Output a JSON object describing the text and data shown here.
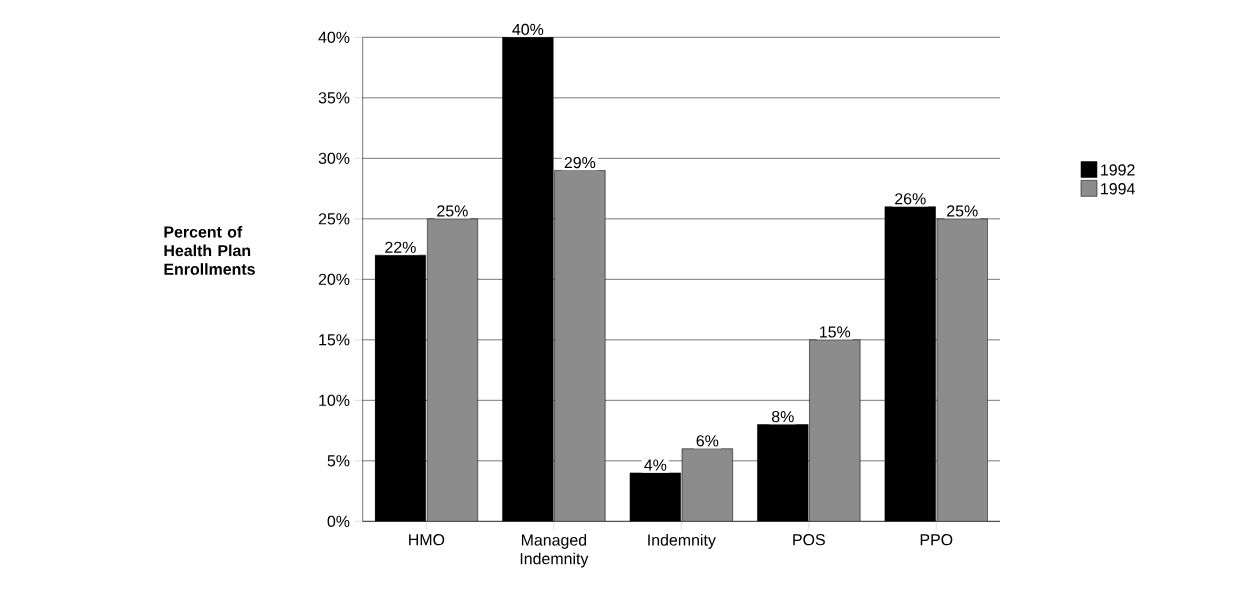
{
  "chart_data": {
    "type": "bar",
    "ylabel": "Percent of Health Plan Enrollments",
    "categories": [
      "HMO",
      "Managed Indemnity",
      "Indemnity",
      "POS",
      "PPO"
    ],
    "series": [
      {
        "name": "1992",
        "color": "#000000",
        "values": [
          22,
          40,
          4,
          8,
          26
        ],
        "value_labels": [
          "22%",
          "40%",
          "4%",
          "8%",
          "26%"
        ]
      },
      {
        "name": "1994",
        "color": "#8c8c8c",
        "values": [
          25,
          29,
          6,
          15,
          25
        ],
        "value_labels": [
          "25%",
          "29%",
          "6%",
          "15%",
          "25%"
        ]
      }
    ],
    "ylim": [
      0,
      40
    ],
    "yticks": [
      {
        "value": 0,
        "label": "0%"
      },
      {
        "value": 5,
        "label": "5%"
      },
      {
        "value": 10,
        "label": "10%"
      },
      {
        "value": 15,
        "label": "15%"
      },
      {
        "value": 20,
        "label": "20%"
      },
      {
        "value": 25,
        "label": "25%"
      },
      {
        "value": 30,
        "label": "30%"
      },
      {
        "value": 35,
        "label": "35%"
      },
      {
        "value": 40,
        "label": "40%"
      }
    ],
    "grid": "y",
    "legend": "right"
  }
}
